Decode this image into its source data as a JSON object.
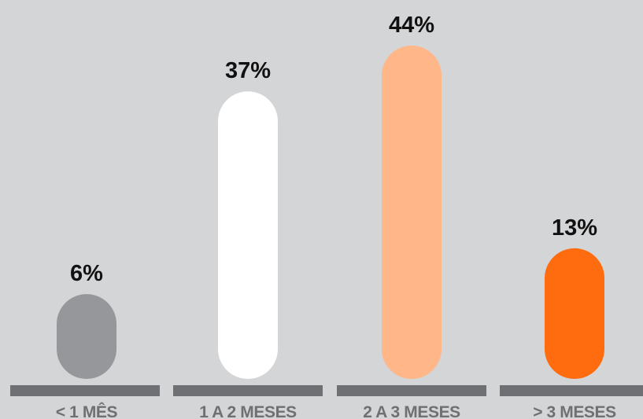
{
  "chart_data": {
    "type": "bar",
    "title": "",
    "xlabel": "",
    "ylabel": "",
    "categories": [
      "< 1 MÊS",
      "1 A 2 MESES",
      "2 A 3 MESES",
      "> 3 MESES"
    ],
    "values": [
      6,
      37,
      44,
      13
    ],
    "value_labels": [
      "6%",
      "37%",
      "44%",
      "13%"
    ],
    "unit": "%",
    "ylim": [
      0,
      44
    ],
    "grid": false,
    "legend": "none",
    "colors": {
      "background": "#d4d5d7",
      "baseline": "#6f7073",
      "category_text": "#6f7073",
      "value_text": "#111111",
      "bars": [
        "#96979a",
        "#ffffff",
        "#ffb688",
        "#ff6b0f"
      ]
    }
  }
}
